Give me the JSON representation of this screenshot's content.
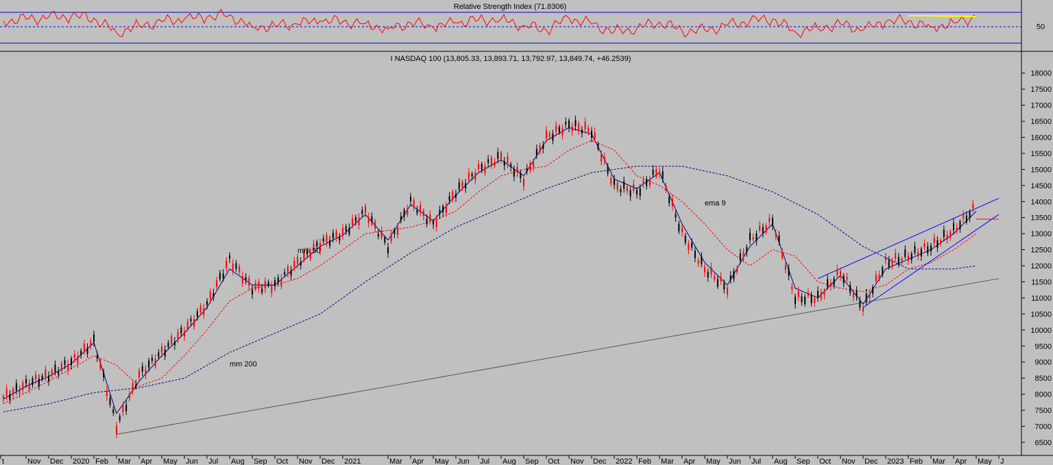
{
  "chart_data": [
    {
      "type": "line",
      "title": "Relative Strength Index (71.8306)",
      "ylim": [
        0,
        100
      ],
      "y_ticks": [
        50
      ],
      "reference_levels": [
        {
          "value": 70,
          "style": "solid",
          "color": "#0000cc"
        },
        {
          "value": 50,
          "style": "dashed",
          "color": "#0000cc"
        },
        {
          "value": 30,
          "style": "solid",
          "color": "#0000cc"
        }
      ],
      "series": [
        {
          "color": "#ff0000",
          "x": [
            "2019-10",
            "2019-11",
            "2019-12",
            "2020-01",
            "2020-02",
            "2020-03",
            "2020-04",
            "2020-05",
            "2020-06",
            "2020-07",
            "2020-08",
            "2020-09",
            "2020-10",
            "2020-11",
            "2020-12",
            "2021-01",
            "2021-02",
            "2021-03",
            "2021-04",
            "2021-05",
            "2021-06",
            "2021-07",
            "2021-08",
            "2021-09",
            "2021-10",
            "2021-11",
            "2021-12",
            "2022-01",
            "2022-02",
            "2022-03",
            "2022-04",
            "2022-05",
            "2022-06",
            "2022-07",
            "2022-08",
            "2022-09",
            "2022-10",
            "2022-11",
            "2022-12",
            "2023-01",
            "2023-02",
            "2023-03",
            "2023-04",
            "2023-05"
          ],
          "values": [
            62,
            66,
            70,
            72,
            68,
            36,
            52,
            60,
            66,
            70,
            75,
            48,
            52,
            55,
            62,
            60,
            56,
            44,
            58,
            48,
            58,
            64,
            66,
            52,
            42,
            68,
            55,
            38,
            46,
            60,
            40,
            42,
            52,
            62,
            66,
            38,
            46,
            55,
            42,
            60,
            62,
            48,
            58,
            71.8
          ]
        },
        {
          "color": "#ffff00",
          "x": [
            "2023-02",
            "2023-05"
          ],
          "values": [
            73.5,
            71.8
          ]
        }
      ],
      "x_ticks": [],
      "grid": false
    },
    {
      "type": "line",
      "title": "I NASDAQ 100 (13,805.33, 13,893.71, 13,792.97, 13,849.74, +46.2539)",
      "ylim": [
        6200,
        18250
      ],
      "y_ticks": [
        6500,
        7000,
        7500,
        8000,
        8500,
        9000,
        9500,
        10000,
        10500,
        11000,
        11500,
        12000,
        12500,
        13000,
        13500,
        14000,
        14500,
        15000,
        15500,
        16000,
        16500,
        17000,
        17500,
        18000
      ],
      "x_ticks": [
        "t",
        "Nov",
        "Dec",
        "2020",
        "Feb",
        "Mar",
        "Apr",
        "May",
        "Jun",
        "Jul",
        "Aug",
        "Sep",
        "Oct",
        "Nov",
        "Dec",
        "2021",
        "Mar",
        "Apr",
        "May",
        "Jun",
        "Jul",
        "Aug",
        "Sep",
        "Oct",
        "Nov",
        "Dec",
        "2022",
        "Feb",
        "Mar",
        "Apr",
        "May",
        "Jun",
        "Jul",
        "Aug",
        "Sep",
        "Oct",
        "Nov",
        "Dec",
        "2023",
        "Feb",
        "Mar",
        "Apr",
        "May",
        "J"
      ],
      "grid": false,
      "annotations": [
        "mm 50",
        "mm 200",
        "ema 9"
      ],
      "series": [
        {
          "style": "candlestick",
          "x": [
            "2019-10",
            "2019-11",
            "2019-12",
            "2020-01",
            "2020-02",
            "2020-03",
            "2020-04",
            "2020-05",
            "2020-06",
            "2020-07",
            "2020-08",
            "2020-09",
            "2020-10",
            "2020-11",
            "2020-12",
            "2021-01",
            "2021-02",
            "2021-03",
            "2021-04",
            "2021-05",
            "2021-06",
            "2021-07",
            "2021-08",
            "2021-09",
            "2021-10",
            "2021-11",
            "2021-12",
            "2022-01",
            "2022-02",
            "2022-03",
            "2022-04",
            "2022-05",
            "2022-06",
            "2022-07",
            "2022-08",
            "2022-09",
            "2022-10",
            "2022-11",
            "2022-12",
            "2023-01",
            "2023-02",
            "2023-03",
            "2023-04",
            "2023-05"
          ],
          "values": [
            7900,
            8300,
            8600,
            9000,
            9650,
            7000,
            8600,
            9300,
            10000,
            10800,
            12200,
            11300,
            11400,
            12100,
            12700,
            13000,
            13700,
            12600,
            14000,
            13300,
            14300,
            15000,
            15400,
            14700,
            16000,
            16400,
            16200,
            14500,
            14300,
            15000,
            13000,
            11900,
            11300,
            12800,
            13400,
            11000,
            11000,
            11800,
            10700,
            12100,
            12300,
            12600,
            13100,
            13850
          ]
        },
        {
          "name": "ema 9",
          "style": "solid",
          "color": "#000080",
          "x": [
            "2019-10",
            "2019-11",
            "2019-12",
            "2020-01",
            "2020-02",
            "2020-03",
            "2020-04",
            "2020-05",
            "2020-06",
            "2020-07",
            "2020-08",
            "2020-09",
            "2020-10",
            "2020-11",
            "2020-12",
            "2021-01",
            "2021-02",
            "2021-03",
            "2021-04",
            "2021-05",
            "2021-06",
            "2021-07",
            "2021-08",
            "2021-09",
            "2021-10",
            "2021-11",
            "2021-12",
            "2022-01",
            "2022-02",
            "2022-03",
            "2022-04",
            "2022-05",
            "2022-06",
            "2022-07",
            "2022-08",
            "2022-09",
            "2022-10",
            "2022-11",
            "2022-12",
            "2023-01",
            "2023-02",
            "2023-03",
            "2023-04",
            "2023-05"
          ],
          "values": [
            7850,
            8250,
            8550,
            8950,
            9600,
            7400,
            8400,
            9200,
            9900,
            10700,
            11900,
            11400,
            11400,
            12000,
            12600,
            12950,
            13600,
            12800,
            13900,
            13400,
            14200,
            14900,
            15300,
            14800,
            15900,
            16300,
            16100,
            14700,
            14400,
            14900,
            13300,
            12100,
            11400,
            12600,
            13300,
            11300,
            11000,
            11700,
            10800,
            11900,
            12200,
            12500,
            13000,
            13700
          ]
        },
        {
          "name": "mm 50",
          "style": "dashed",
          "color": "#ff0000",
          "x": [
            "2019-10",
            "2019-11",
            "2019-12",
            "2020-01",
            "2020-02",
            "2020-03",
            "2020-04",
            "2020-05",
            "2020-06",
            "2020-07",
            "2020-08",
            "2020-09",
            "2020-10",
            "2020-11",
            "2020-12",
            "2021-01",
            "2021-02",
            "2021-03",
            "2021-04",
            "2021-05",
            "2021-06",
            "2021-07",
            "2021-08",
            "2021-09",
            "2021-10",
            "2021-11",
            "2021-12",
            "2022-01",
            "2022-02",
            "2022-03",
            "2022-04",
            "2022-05",
            "2022-06",
            "2022-07",
            "2022-08",
            "2022-09",
            "2022-10",
            "2022-11",
            "2022-12",
            "2023-01",
            "2023-02",
            "2023-03",
            "2023-04",
            "2023-05"
          ],
          "values": [
            7700,
            8050,
            8400,
            8800,
            9200,
            8900,
            8250,
            8500,
            9200,
            10000,
            10900,
            11300,
            11400,
            11600,
            12000,
            12500,
            13000,
            13100,
            13200,
            13400,
            13700,
            14300,
            14800,
            15000,
            15100,
            15600,
            15900,
            15600,
            14800,
            14500,
            14000,
            13300,
            12500,
            12000,
            12500,
            12300,
            11500,
            11300,
            11200,
            11400,
            11900,
            12100,
            12500,
            13000
          ]
        },
        {
          "name": "mm 200",
          "style": "dashed",
          "color": "#000080",
          "x": [
            "2019-10",
            "2019-12",
            "2020-02",
            "2020-04",
            "2020-06",
            "2020-08",
            "2020-10",
            "2020-12",
            "2021-02",
            "2021-04",
            "2021-06",
            "2021-08",
            "2021-10",
            "2021-12",
            "2022-02",
            "2022-04",
            "2022-06",
            "2022-08",
            "2022-10",
            "2022-12",
            "2023-02",
            "2023-04",
            "2023-05"
          ],
          "values": [
            7450,
            7700,
            8050,
            8200,
            8500,
            9300,
            9900,
            10500,
            11500,
            12400,
            13200,
            13800,
            14400,
            14900,
            15100,
            15100,
            14800,
            14300,
            13600,
            12600,
            11900,
            11900,
            12000
          ]
        }
      ],
      "trendlines": [
        {
          "from": [
            "2020-03",
            6750
          ],
          "to": [
            "2023-06",
            11600
          ],
          "color": "#555555"
        },
        {
          "from": [
            "2022-10",
            11600
          ],
          "to": [
            "2023-06",
            14100
          ],
          "color": "#0000ff"
        },
        {
          "from": [
            "2022-12",
            10700
          ],
          "to": [
            "2023-06",
            13600
          ],
          "color": "#0000ff"
        },
        {
          "from": [
            "2023-05",
            13450
          ],
          "to": [
            "2023-06",
            13450
          ],
          "color": "#ff0000"
        }
      ]
    }
  ]
}
